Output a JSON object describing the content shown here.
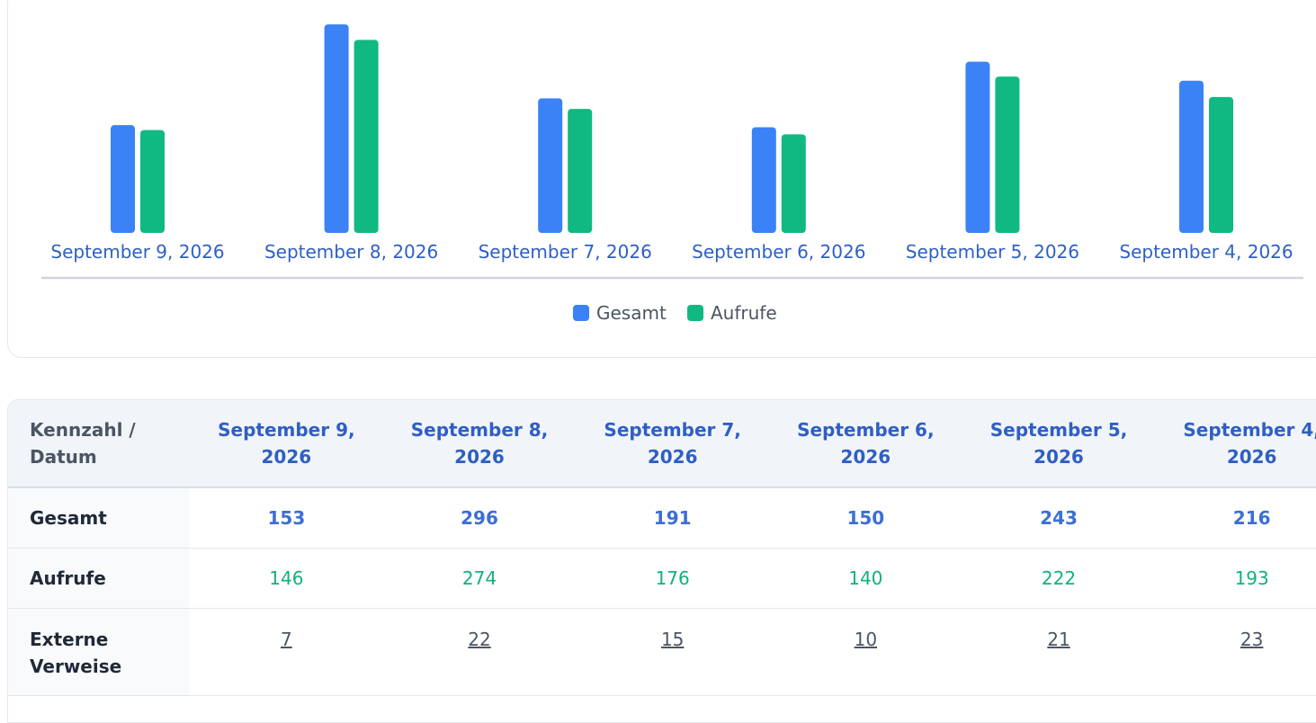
{
  "chart_data": {
    "type": "bar",
    "categories": [
      "September 9, 2026",
      "September 8, 2026",
      "September 7, 2026",
      "September 6, 2026",
      "September 5, 2026",
      "September 4, 2026"
    ],
    "series": [
      {
        "name": "Gesamt",
        "values": [
          153,
          296,
          191,
          150,
          243,
          216
        ],
        "color": "#3b82f6"
      },
      {
        "name": "Aufrufe",
        "values": [
          146,
          274,
          176,
          140,
          222,
          193
        ],
        "color": "#10b981"
      }
    ],
    "ylim": [
      0,
      300
    ],
    "legend": "bottom",
    "grid": false
  },
  "table": {
    "corner_label": "Kennzahl / Datum",
    "columns": [
      "September 9, 2026",
      "September 8, 2026",
      "September 7, 2026",
      "September 6, 2026",
      "September 5, 2026",
      "September 4, 2026"
    ],
    "rows": [
      {
        "label": "Gesamt",
        "values": [
          "153",
          "296",
          "191",
          "150",
          "243",
          "216"
        ]
      },
      {
        "label": "Aufrufe",
        "values": [
          "146",
          "274",
          "176",
          "140",
          "222",
          "193"
        ]
      },
      {
        "label": "Externe Verweise",
        "values": [
          "7",
          "22",
          "15",
          "10",
          "21",
          "23"
        ]
      }
    ]
  },
  "colors": {
    "total": "#3b82f6",
    "views": "#10b981",
    "header_text": "#2f5fc4"
  }
}
